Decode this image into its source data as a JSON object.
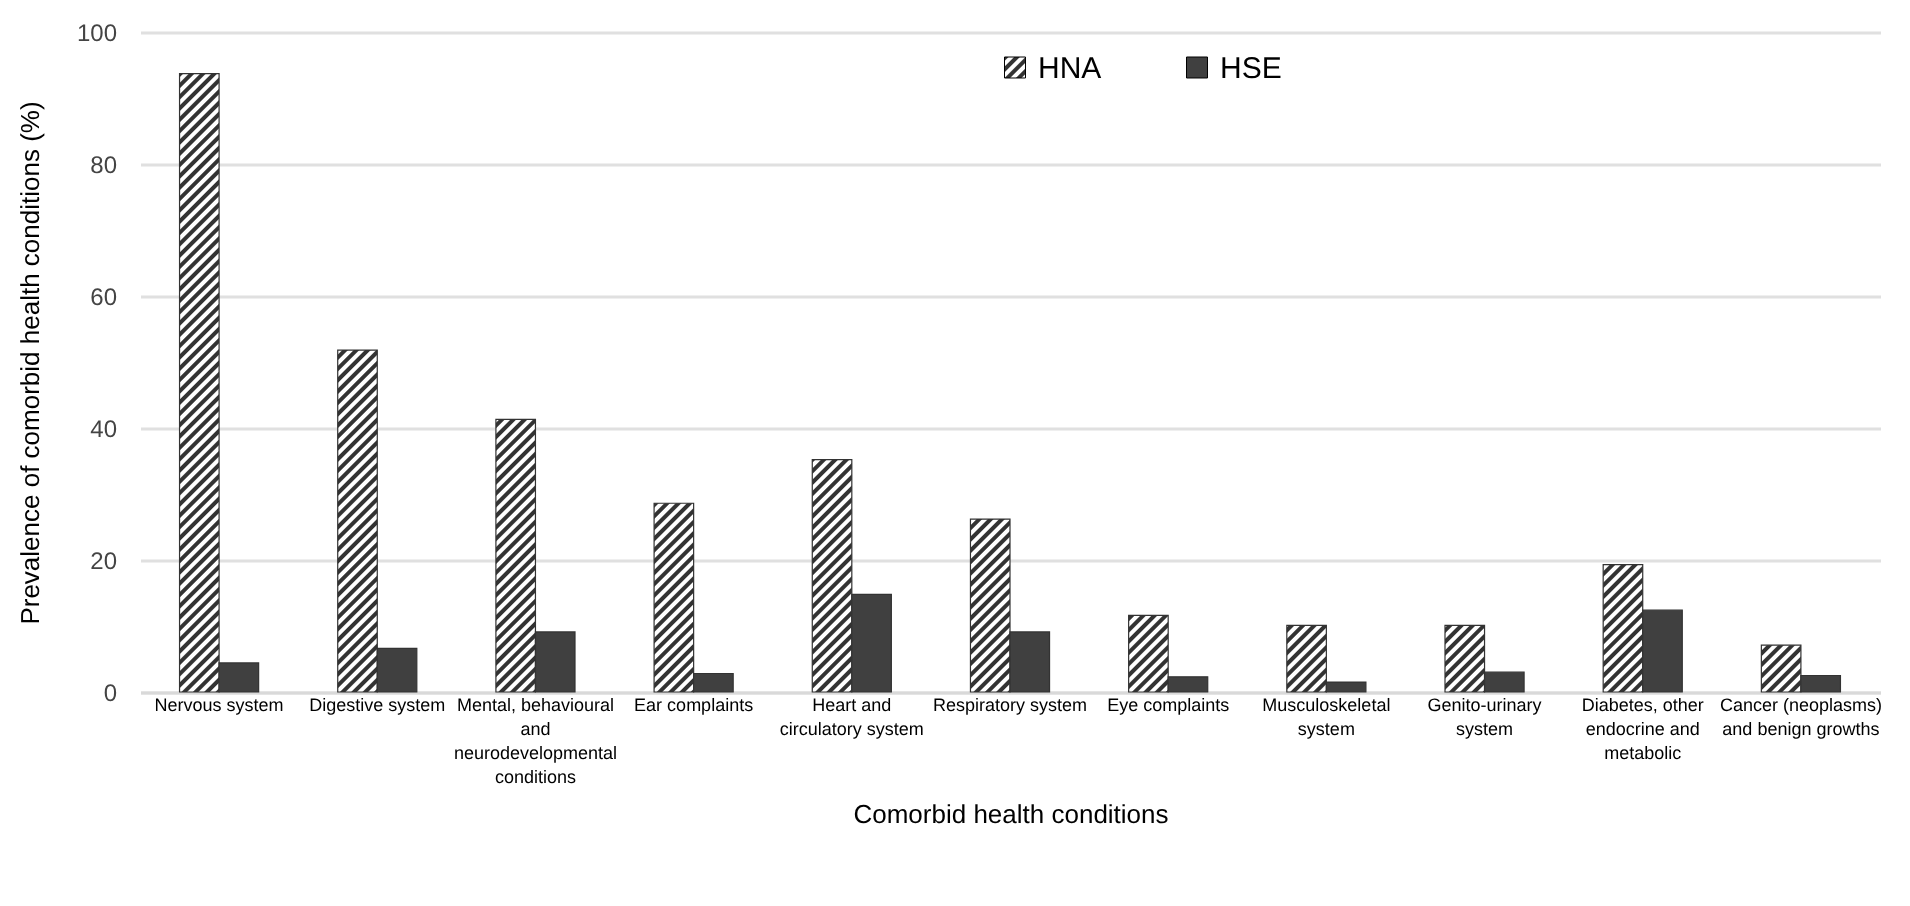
{
  "chart_data": {
    "type": "bar",
    "xlabel": "Comorbid health conditions",
    "ylabel": "Prevalence of comorbid health conditions (%)",
    "categories": [
      "Nervous system",
      "Digestive system",
      "Mental, behavioural and neurodevelopmental conditions",
      "Ear complaints",
      "Heart and circulatory system",
      "Respiratory system",
      "Eye complaints",
      "Musculoskeletal system",
      "Genito-urinary system",
      "Diabetes, other endocrine and metabolic",
      "Cancer (neoplasms) and benign growths"
    ],
    "series": [
      {
        "name": "HNA",
        "color": "#333333",
        "values": [
          93.7,
          51.8,
          41.3,
          28.6,
          35.2,
          26.2,
          11.6,
          10.1,
          10.1,
          19.3,
          7.1
        ]
      },
      {
        "name": "HSE",
        "color": "#404040",
        "values": [
          4.4,
          6.6,
          9.1,
          2.8,
          14.8,
          9.1,
          2.3,
          1.5,
          3.0,
          12.4,
          2.5
        ]
      }
    ],
    "ylim": [
      0,
      100
    ],
    "yticks": [
      0,
      20,
      40,
      60,
      80,
      100
    ],
    "grid": "y",
    "legend": "top"
  }
}
